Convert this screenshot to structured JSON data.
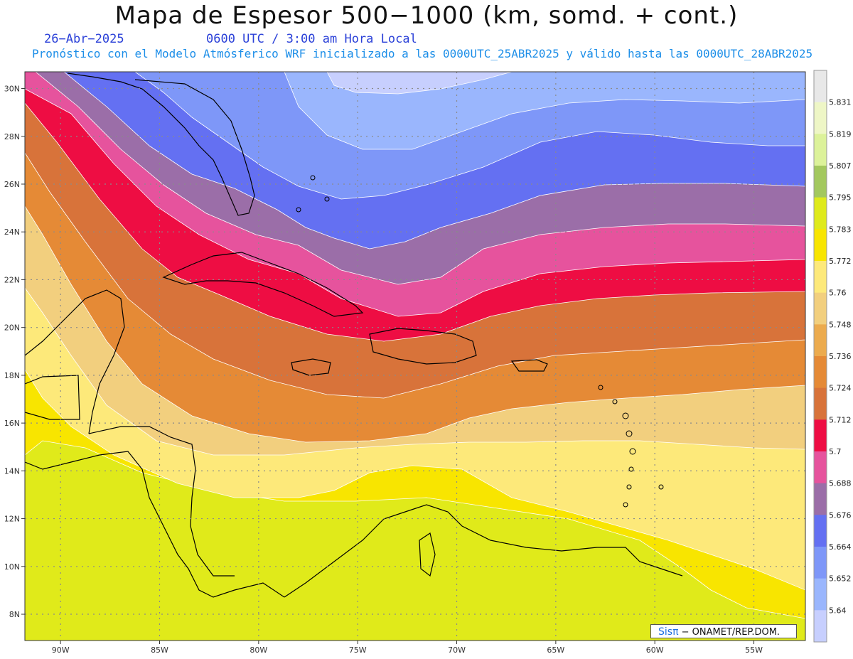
{
  "header": {
    "title": "Mapa de Espesor 500−1000 (km, somd. + cont.)",
    "date": "26−Abr−2025",
    "time": "0600 UTC / 3:00 am Hora Local",
    "subtitle": "Pronóstico con el Modelo Atmósferico WRF inicializado a las 0000UTC_25ABR2025 y válido hasta las  0000UTC_28ABR2025"
  },
  "credit": {
    "brand": "Sisπ",
    "text": "− ONAMET/REP.DOM."
  },
  "axes": {
    "lat_labels": [
      "30N",
      "28N",
      "26N",
      "24N",
      "22N",
      "20N",
      "18N",
      "16N",
      "14N",
      "12N",
      "10N",
      "8N"
    ],
    "lat_values": [
      30,
      28,
      26,
      24,
      22,
      20,
      18,
      16,
      14,
      12,
      10,
      8
    ],
    "lon_labels": [
      "90W",
      "85W",
      "80W",
      "75W",
      "70W",
      "65W",
      "60W",
      "55W"
    ],
    "lon_values": [
      -90,
      -85,
      -80,
      -75,
      -70,
      -65,
      -60,
      -55
    ]
  },
  "colorbar": {
    "labels": [
      "5.831",
      "5.819",
      "5.807",
      "5.795",
      "5.783",
      "5.772",
      "5.76",
      "5.748",
      "5.736",
      "5.724",
      "5.712",
      "5.7",
      "5.688",
      "5.676",
      "5.664",
      "5.652",
      "5.64"
    ],
    "colors": [
      "#e8e8e8",
      "#eef6c6",
      "#dcf29a",
      "#a3c85e",
      "#dfea1b",
      "#f8e500",
      "#fde97a",
      "#f2cf7e",
      "#ecab4e",
      "#e58a36",
      "#d8733a",
      "#ee0d43",
      "#e6539d",
      "#9b6ea8",
      "#6470f2",
      "#7e97f8",
      "#9ab6fd",
      "#c7cffe"
    ]
  },
  "field": {
    "band_colors": [
      "#e0ea1a",
      "#f8e500",
      "#fde97a",
      "#f2cf7e",
      "#e58a36",
      "#d8733a",
      "#ee0d43",
      "#e6539d",
      "#9b6ea8",
      "#6470f2",
      "#7e97f8",
      "#9ab6fd",
      "#c7cffe"
    ]
  }
}
